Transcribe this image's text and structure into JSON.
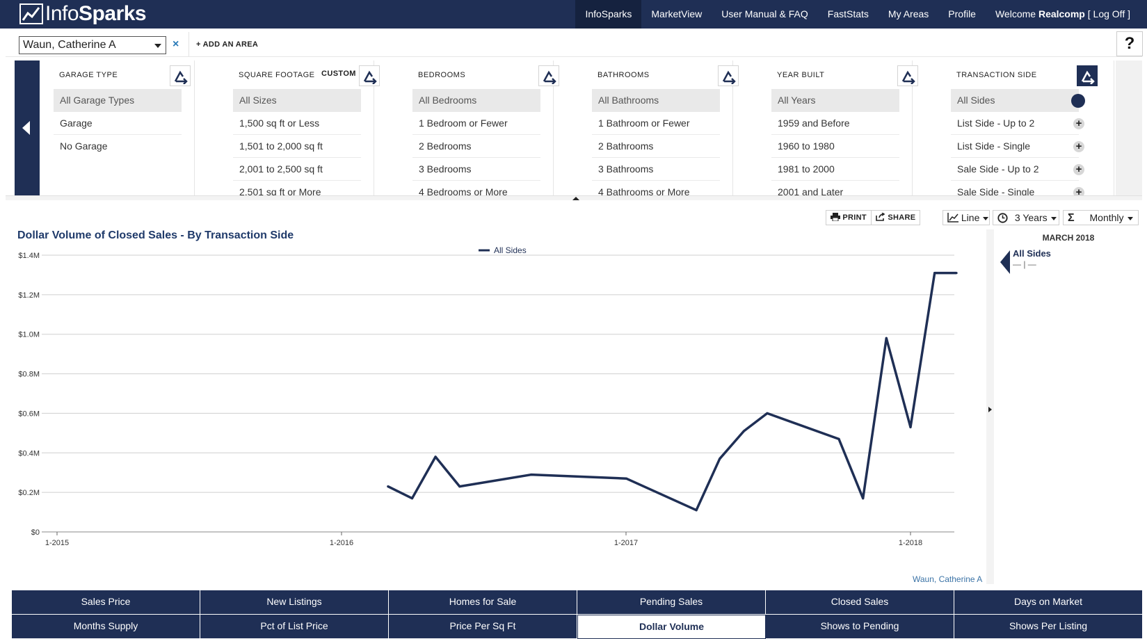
{
  "app": {
    "logo_light": "Info",
    "logo_bold": "Sparks"
  },
  "nav": {
    "items": [
      "InfoSparks",
      "MarketView",
      "User Manual & FAQ",
      "FastStats",
      "My Areas",
      "Profile"
    ],
    "welcome_prefix": "Welcome ",
    "welcome_user": "Realcomp",
    "logoff": " [ Log Off ]"
  },
  "area": {
    "selected": "Waun, Catherine A",
    "remove_icon": "×",
    "add_label": "+ ADD AN AREA",
    "help": "?"
  },
  "filters": [
    {
      "title": "GARAGE TYPE",
      "custom": "",
      "options": [
        "All Garage Types",
        "Garage",
        "No Garage"
      ]
    },
    {
      "title": "SQUARE FOOTAGE",
      "custom": "CUSTOM",
      "options": [
        "All Sizes",
        "1,500 sq ft or Less",
        "1,501 to 2,000 sq ft",
        "2,001 to 2,500 sq ft",
        "2,501 sq ft or More"
      ]
    },
    {
      "title": "BEDROOMS",
      "custom": "",
      "options": [
        "All Bedrooms",
        "1 Bedroom or Fewer",
        "2 Bedrooms",
        "3 Bedrooms",
        "4 Bedrooms or More"
      ]
    },
    {
      "title": "BATHROOMS",
      "custom": "",
      "options": [
        "All Bathrooms",
        "1 Bathroom or Fewer",
        "2 Bathrooms",
        "3 Bathrooms",
        "4 Bathrooms or More"
      ]
    },
    {
      "title": "YEAR BUILT",
      "custom": "",
      "options": [
        "All Years",
        "1959 and Before",
        "1960 to 1980",
        "1981 to 2000",
        "2001 and Later"
      ]
    },
    {
      "title": "TRANSACTION SIDE",
      "custom": "",
      "options": [
        "All Sides",
        "List Side - Up to 2",
        "List Side - Single",
        "Sale Side - Up to 2",
        "Sale Side - Single"
      ]
    }
  ],
  "toolbar": {
    "print": "PRINT",
    "share": "SHARE",
    "chart_type": "Line",
    "range": "3 Years",
    "period": "Monthly"
  },
  "chart_data": {
    "type": "line",
    "title": "Dollar Volume of Closed Sales - By Transaction Side",
    "legend": "All Sides",
    "series": [
      {
        "name": "All Sides",
        "x": [
          "2016-03",
          "2016-04",
          "2016-05",
          "2016-06",
          "2016-09",
          "2017-01",
          "2017-04",
          "2017-05",
          "2017-06",
          "2017-07",
          "2017-10",
          "2017-11",
          "2017-12",
          "2018-01",
          "2018-02",
          "2018-03"
        ],
        "values": [
          0.23,
          0.17,
          0.38,
          0.23,
          0.29,
          0.27,
          0.11,
          0.37,
          0.51,
          0.6,
          0.47,
          0.17,
          0.98,
          0.53,
          1.31,
          1.31
        ]
      }
    ],
    "x_ticks": [
      "1-2015",
      "1-2016",
      "1-2017",
      "1-2018"
    ],
    "y_ticks": [
      "$0",
      "$0.2M",
      "$0.4M",
      "$0.6M",
      "$0.8M",
      "$1.0M",
      "$1.2M",
      "$1.4M"
    ],
    "ylim": [
      0,
      1.4
    ],
    "grid": true,
    "series_color": "#1f2f55"
  },
  "sidebar": {
    "date": "MARCH 2018",
    "series": "All Sides",
    "value": "— | —"
  },
  "credit": "Waun, Catherine A",
  "tabs": [
    "Sales Price",
    "New Listings",
    "Homes for Sale",
    "Pending Sales",
    "Closed Sales",
    "Days on Market",
    "Months Supply",
    "Pct of List Price",
    "Price Per Sq Ft",
    "Dollar Volume",
    "Shows to Pending",
    "Shows Per Listing"
  ],
  "active_tab": "Dollar Volume",
  "colors": {
    "navy": "#1f2f55",
    "accent_blue": "#2a7ab8"
  }
}
